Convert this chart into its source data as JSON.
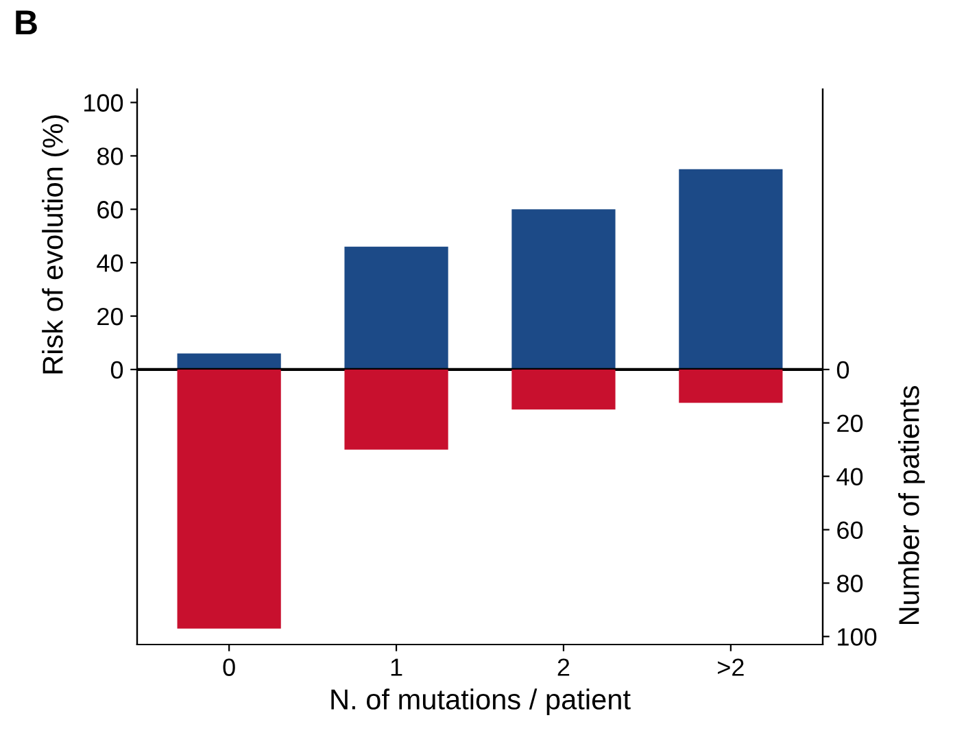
{
  "chart_data": {
    "type": "bar",
    "title": "B",
    "xlabel": "N. of mutations / patient",
    "ylabel": "Risk of evolution (%)",
    "y2label": "Number of patients",
    "categories": [
      "0",
      "1",
      "2",
      ">2"
    ],
    "series": [
      {
        "color": "#1c4a87",
        "values": [
          6,
          46,
          60,
          75
        ]
      },
      {
        "color": "#c8102e",
        "values": [
          97,
          30,
          15,
          12.5
        ],
        "axis": "y2"
      }
    ],
    "ylim": [
      -103,
      105
    ],
    "yticks": [
      0,
      20,
      40,
      60,
      80,
      100
    ],
    "y2lim": [
      103,
      -105
    ],
    "y2ticks": [
      0,
      20,
      40,
      60,
      80,
      100
    ],
    "ref_lines": [
      {
        "axis": "y",
        "value": 0,
        "color": "#000000"
      }
    ],
    "grid": false,
    "legend": false,
    "stacked": true
  }
}
